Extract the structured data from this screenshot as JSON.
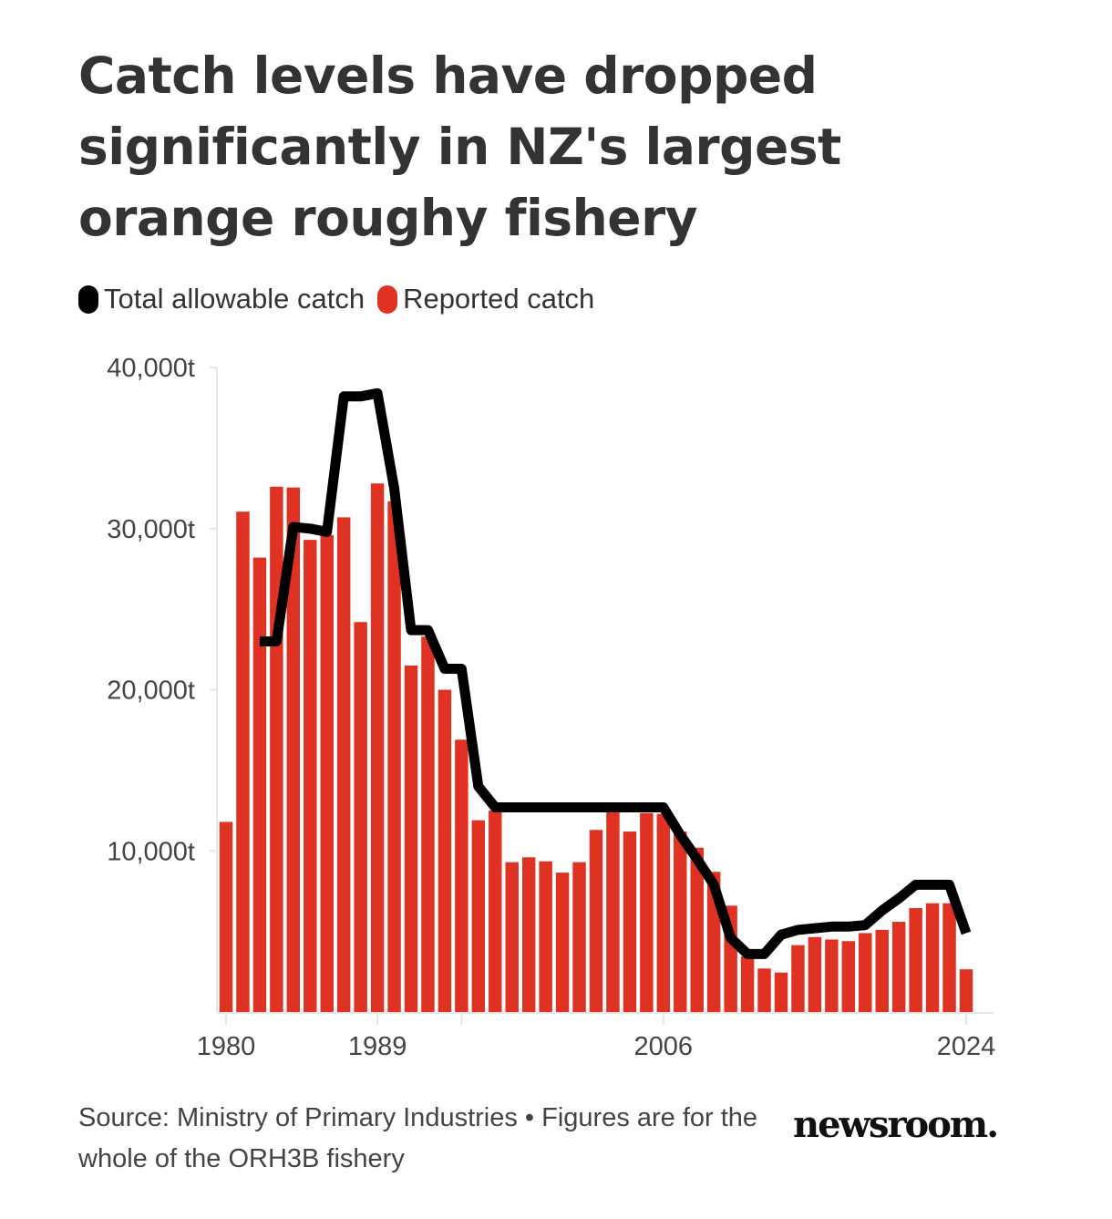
{
  "header": {
    "title": "Catch levels have dropped significantly in NZ's largest orange roughy fishery"
  },
  "legend": [
    {
      "label": "Total allowable catch",
      "color": "#000000",
      "icon": "pill-swatch"
    },
    {
      "label": "Reported catch",
      "color": "#e03223",
      "icon": "pill-swatch"
    }
  ],
  "footer": {
    "source": "Source: Ministry of Primary Industries • Figures are for the whole of the ORH3B fishery",
    "logo": "newsroom."
  },
  "chart_data": {
    "type": "bar",
    "title": "Catch levels have dropped significantly in NZ's largest orange roughy fishery",
    "xlabel": "",
    "ylabel": "",
    "ylim": [
      0,
      40000
    ],
    "xlim": [
      1980,
      2024
    ],
    "grid": false,
    "legend_position": "top-left",
    "y_ticks": [
      {
        "value": 10000,
        "label": "10,000t"
      },
      {
        "value": 20000,
        "label": "20,000t"
      },
      {
        "value": 30000,
        "label": "30,000t"
      },
      {
        "value": 40000,
        "label": "40,000t"
      }
    ],
    "x_ticks": [
      {
        "value": 1980,
        "label": "1980"
      },
      {
        "value": 1989,
        "label": "1989"
      },
      {
        "value": 1994,
        "label": ""
      },
      {
        "value": 2006,
        "label": "2006"
      },
      {
        "value": 2024,
        "label": "2024"
      }
    ],
    "x": [
      1980,
      1981,
      1982,
      1983,
      1984,
      1985,
      1986,
      1987,
      1988,
      1989,
      1990,
      1991,
      1992,
      1993,
      1994,
      1995,
      1996,
      1997,
      1998,
      1999,
      2000,
      2001,
      2002,
      2003,
      2004,
      2005,
      2006,
      2007,
      2008,
      2009,
      2010,
      2011,
      2012,
      2013,
      2014,
      2015,
      2016,
      2017,
      2018,
      2019,
      2020,
      2021,
      2022,
      2023,
      2024
    ],
    "series": [
      {
        "name": "Reported catch",
        "type": "bar",
        "color": "#e03223",
        "values": [
          11800,
          31050,
          28200,
          32600,
          32550,
          29300,
          29600,
          30700,
          24200,
          32800,
          31700,
          21500,
          23300,
          20000,
          16900,
          11900,
          12500,
          9300,
          9600,
          9350,
          8650,
          9300,
          11300,
          12450,
          11200,
          12350,
          12300,
          11200,
          10200,
          8700,
          6600,
          3450,
          2700,
          2450,
          4150,
          4650,
          4500,
          4400,
          4900,
          5100,
          5600,
          6450,
          6750,
          6750,
          2650
        ]
      },
      {
        "name": "Total allowable catch",
        "type": "line",
        "color": "#000000",
        "values": [
          null,
          null,
          23000,
          23000,
          30100,
          30000,
          29800,
          38200,
          38200,
          38400,
          32500,
          23700,
          23700,
          21300,
          21300,
          14000,
          12700,
          12700,
          12700,
          12700,
          12700,
          12700,
          12700,
          12700,
          12700,
          12700,
          12700,
          11000,
          9500,
          7900,
          4600,
          3600,
          3600,
          4800,
          5100,
          5200,
          5300,
          5300,
          5400,
          6300,
          7050,
          7900,
          7900,
          7900,
          4900
        ]
      }
    ]
  }
}
